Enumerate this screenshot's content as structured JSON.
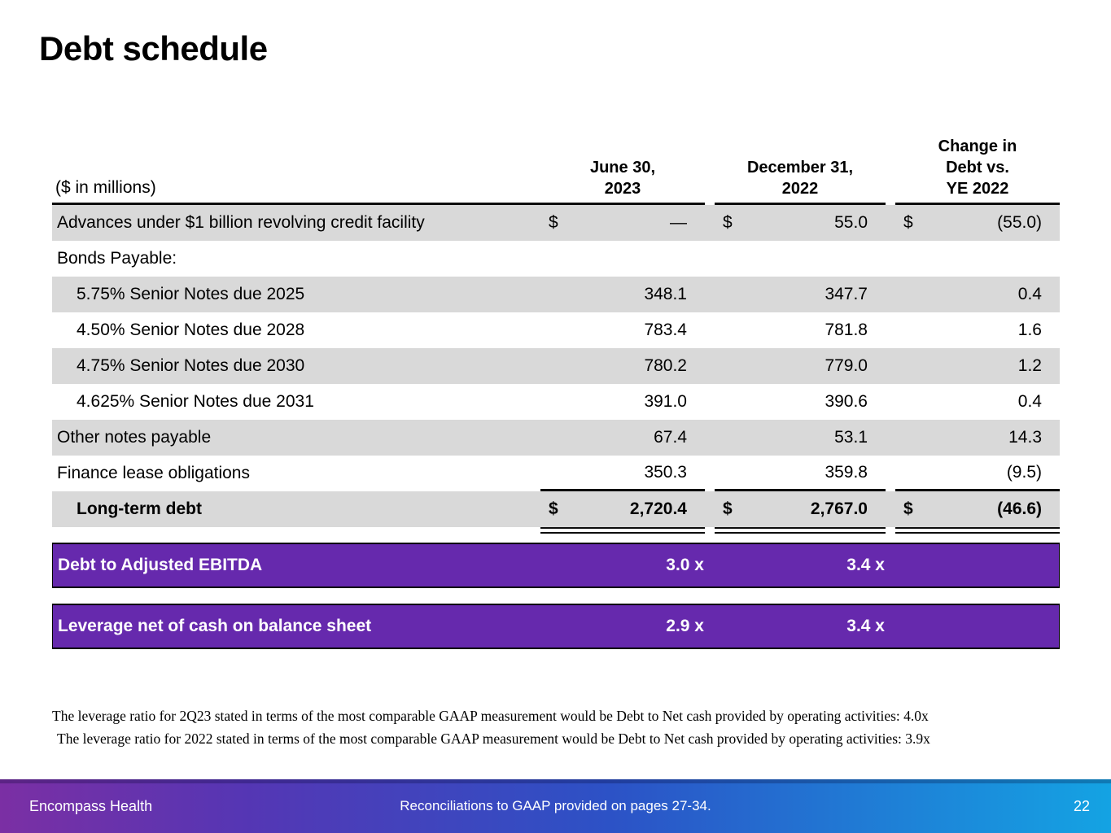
{
  "slide": {
    "title": "Debt schedule"
  },
  "table": {
    "unit_label": "($ in millions)",
    "col_headers": {
      "c1": "June 30,\n2023",
      "c2": "December 31,\n2022",
      "c3": "Change in\nDebt vs.\nYE 2022"
    },
    "rows": [
      {
        "label": "Advances under $1 billion revolving credit facility",
        "cur1": "$",
        "v1": "—",
        "cur2": "$",
        "v2": "55.0",
        "cur3": "$",
        "v3": "(55.0)"
      },
      {
        "label": "Bonds Payable:",
        "cur1": "",
        "v1": "",
        "cur2": "",
        "v2": "",
        "cur3": "",
        "v3": ""
      },
      {
        "label": "5.75% Senior Notes due 2025",
        "cur1": "",
        "v1": "348.1",
        "cur2": "",
        "v2": "347.7",
        "cur3": "",
        "v3": "0.4"
      },
      {
        "label": "4.50% Senior Notes due 2028",
        "cur1": "",
        "v1": "783.4",
        "cur2": "",
        "v2": "781.8",
        "cur3": "",
        "v3": "1.6"
      },
      {
        "label": "4.75% Senior Notes due 2030",
        "cur1": "",
        "v1": "780.2",
        "cur2": "",
        "v2": "779.0",
        "cur3": "",
        "v3": "1.2"
      },
      {
        "label": "4.625% Senior Notes due 2031",
        "cur1": "",
        "v1": "391.0",
        "cur2": "",
        "v2": "390.6",
        "cur3": "",
        "v3": "0.4"
      },
      {
        "label": "Other notes payable",
        "cur1": "",
        "v1": "67.4",
        "cur2": "",
        "v2": "53.1",
        "cur3": "",
        "v3": "14.3"
      },
      {
        "label": "Finance lease obligations",
        "cur1": "",
        "v1": "350.3",
        "cur2": "",
        "v2": "359.8",
        "cur3": "",
        "v3": "(9.5)"
      },
      {
        "label": "Long-term debt",
        "cur1": "$",
        "v1": "2,720.4",
        "cur2": "$",
        "v2": "2,767.0",
        "cur3": "$",
        "v3": "(46.6)"
      }
    ]
  },
  "ratio_bars": [
    {
      "label": "Debt to Adjusted EBITDA",
      "v1": "3.0 x",
      "v2": "3.4 x"
    },
    {
      "label": "Leverage net of cash on balance sheet",
      "v1": "2.9 x",
      "v2": "3.4 x"
    }
  ],
  "footnotes": [
    "The leverage ratio for 2Q23 stated in terms of the most comparable GAAP measurement would be Debt to Net cash provided by operating activities:  4.0x",
    "The leverage ratio for 2022 stated in terms of the most comparable GAAP measurement would be Debt to Net cash provided by operating activities:  3.9x"
  ],
  "footer": {
    "company": "Encompass Health",
    "note": "Reconciliations to GAAP provided on pages 27-34.",
    "page": "22"
  },
  "colors": {
    "accent_purple": "#6629ad",
    "row_shade": "#d9d9d9",
    "table_line": "#0d0d0d",
    "footer_gradient_left": "#7b2fa4",
    "footer_gradient_right": "#14a3e3"
  }
}
